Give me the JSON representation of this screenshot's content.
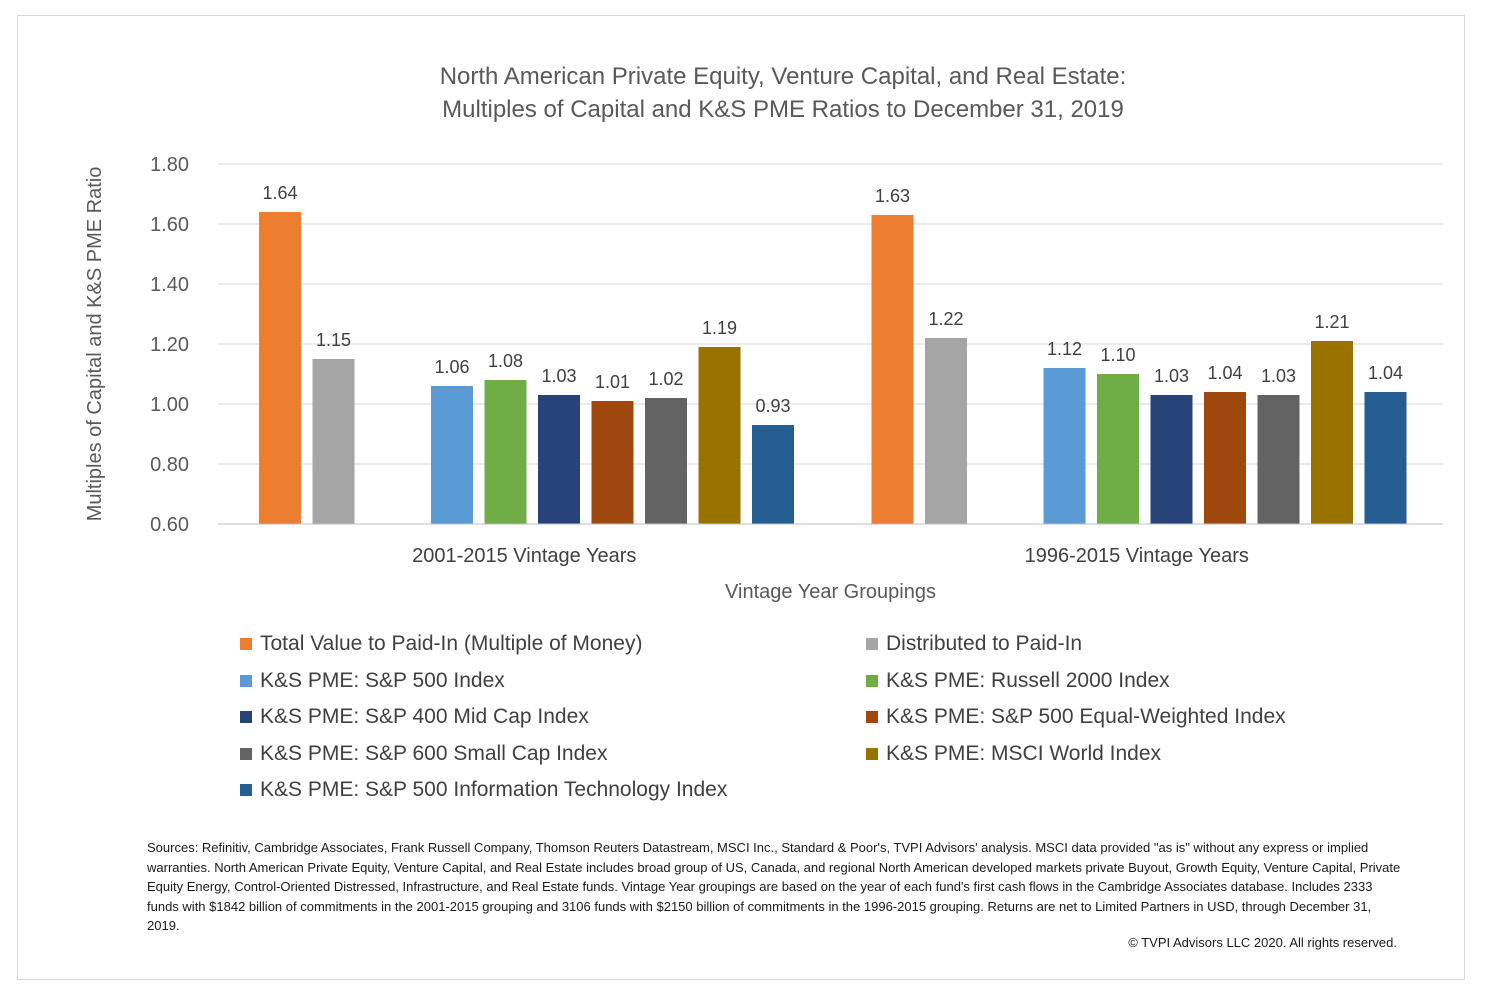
{
  "chart_data": {
    "type": "bar",
    "title_lines": [
      "North American Private Equity, Venture Capital, and Real Estate:",
      "Multiples of Capital and K&S PME Ratios to December 31, 2019"
    ],
    "xlabel": "Vintage Year Groupings",
    "ylabel": "Multiples of Capital and K&S PME Ratio",
    "ylim": [
      0.6,
      1.8
    ],
    "yticks": [
      "0.60",
      "0.80",
      "1.00",
      "1.20",
      "1.40",
      "1.60",
      "1.80"
    ],
    "grid": true,
    "legend_position": "bottom",
    "categories": [
      "2001-2015 Vintage Years",
      "1996-2015 Vintage Years"
    ],
    "series": [
      {
        "name": "Total Value to Paid-In (Multiple of Money)",
        "color": "#ed7d31",
        "values": [
          1.64,
          1.63
        ],
        "labels": [
          "1.64",
          "1.63"
        ]
      },
      {
        "name": "Distributed to Paid-In",
        "color": "#a5a5a5",
        "values": [
          1.15,
          1.22
        ],
        "labels": [
          "1.15",
          "1.22"
        ]
      },
      {
        "name": "K&S PME:  S&P 500 Index",
        "color": "#5b9bd5",
        "values": [
          1.06,
          1.12
        ],
        "labels": [
          "1.06",
          "1.12"
        ]
      },
      {
        "name": "K&S PME:  Russell 2000 Index",
        "color": "#70ad47",
        "values": [
          1.08,
          1.1
        ],
        "labels": [
          "1.08",
          "1.10"
        ]
      },
      {
        "name": "K&S PME:  S&P 400 Mid Cap Index",
        "color": "#264478",
        "values": [
          1.03,
          1.03
        ],
        "labels": [
          "1.03",
          "1.03"
        ]
      },
      {
        "name": "K&S PME:  S&P 500 Equal-Weighted Index",
        "color": "#9e480e",
        "values": [
          1.01,
          1.04
        ],
        "labels": [
          "1.01",
          "1.04"
        ]
      },
      {
        "name": "K&S PME:  S&P 600 Small Cap Index",
        "color": "#636363",
        "values": [
          1.02,
          1.03
        ],
        "labels": [
          "1.02",
          "1.03"
        ]
      },
      {
        "name": "K&S PME:  MSCI World Index",
        "color": "#997300",
        "values": [
          1.19,
          1.21
        ],
        "labels": [
          "1.19",
          "1.21"
        ]
      },
      {
        "name": "K&S PME:  S&P 500 Information Technology Index",
        "color": "#255e91",
        "values": [
          0.93,
          1.04
        ],
        "labels": [
          "0.93",
          "1.04"
        ]
      }
    ]
  },
  "notes": {
    "sources": "Sources:  Refinitiv, Cambridge Associates, Frank Russell Company, Thomson Reuters Datastream, MSCI Inc., Standard & Poor's, TVPI Advisors' analysis.  MSCI data provided \"as is\" without any express or implied warranties.  North American Private Equity, Venture Capital, and Real Estate includes broad group of US, Canada, and regional North American developed markets private Buyout, Growth Equity, Venture Capital, Private Equity Energy, Control-Oriented Distressed, Infrastructure, and Real Estate funds.  Vintage Year groupings are based on the year of each fund's first cash flows in the Cambridge Associates database.  Includes 2333 funds with $1842 billion of commitments in the 2001-2015 grouping and 3106 funds with $2150 billion of commitments in the 1996-2015 grouping.  Returns are net to Limited Partners in USD, through December 31, 2019.",
    "copyright": "© TVPI Advisors LLC 2020.  All rights reserved."
  }
}
